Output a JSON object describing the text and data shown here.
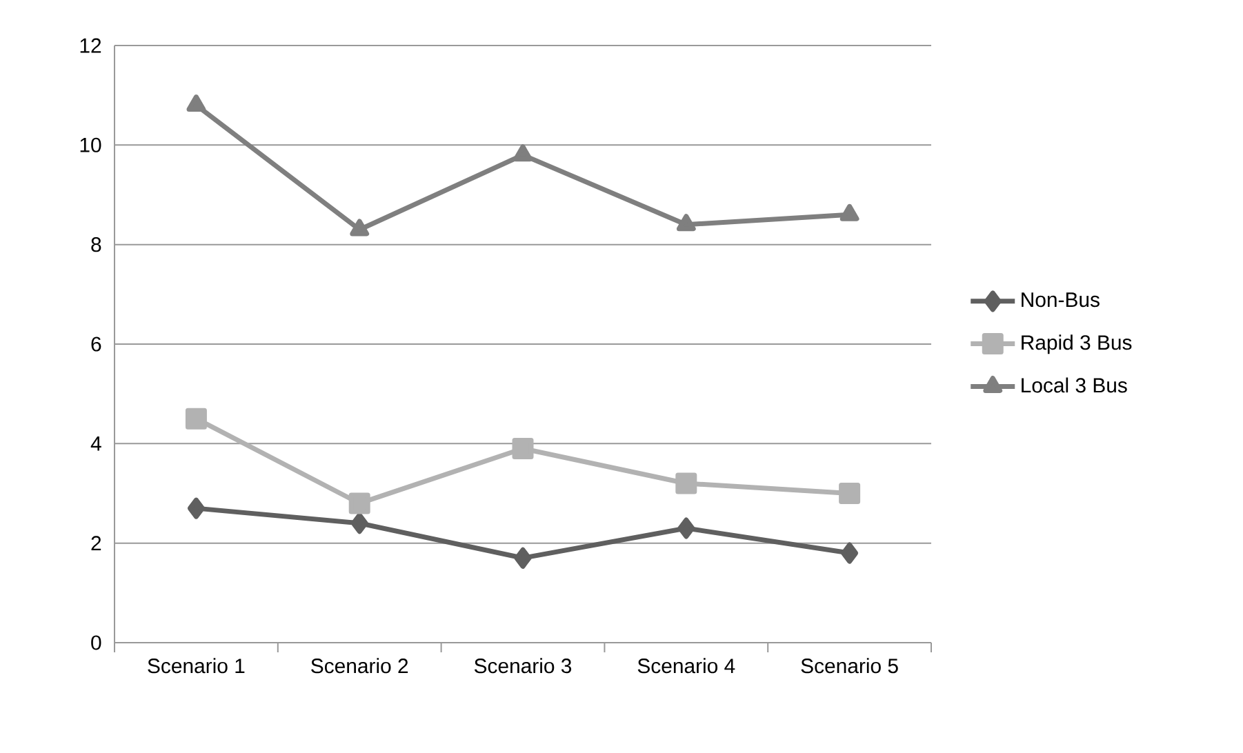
{
  "chart_data": {
    "type": "line",
    "categories": [
      "Scenario 1",
      "Scenario 2",
      "Scenario 3",
      "Scenario 4",
      "Scenario 5"
    ],
    "series": [
      {
        "name": "Non-Bus",
        "color": "#5f5f5f",
        "marker": "diamond",
        "values": [
          2.7,
          2.4,
          1.7,
          2.3,
          1.8
        ]
      },
      {
        "name": "Rapid 3 Bus",
        "color": "#b2b2b2",
        "marker": "square",
        "values": [
          4.5,
          2.8,
          3.9,
          3.2,
          3.0
        ]
      },
      {
        "name": "Local 3 Bus",
        "color": "#7f7f7f",
        "marker": "triangle",
        "values": [
          10.8,
          8.3,
          9.8,
          8.4,
          8.6
        ]
      }
    ],
    "ylim": [
      0,
      12
    ],
    "yticks": [
      0,
      2,
      4,
      6,
      8,
      10,
      12
    ],
    "grid": "y",
    "legend": "right",
    "line_style": "solid"
  }
}
